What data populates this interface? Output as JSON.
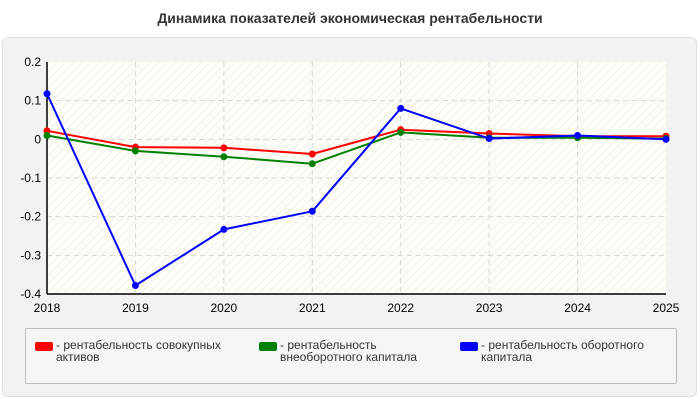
{
  "chart_data": {
    "type": "line",
    "title": "Динамика показателей экономическая рентабельности",
    "xlabel": "",
    "ylabel": "",
    "categories": [
      "2018",
      "2019",
      "2020",
      "2021",
      "2022",
      "2023",
      "2024",
      "2025"
    ],
    "ylim": [
      -0.4,
      0.2
    ],
    "yticks": [
      "0.2",
      "0.1",
      "0",
      "-0.1",
      "-0.2",
      "-0.3",
      "-0.4"
    ],
    "grid": true,
    "legend_position": "bottom",
    "series": [
      {
        "name": "рентабельность совокупных активов",
        "color": "#ff0000",
        "values": [
          0.022,
          -0.02,
          -0.022,
          -0.038,
          0.025,
          0.015,
          0.008,
          0.008
        ]
      },
      {
        "name": "рентабельность внеоборотного капитала",
        "color": "#008000",
        "values": [
          0.01,
          -0.03,
          -0.045,
          -0.063,
          0.018,
          0.004,
          0.004,
          0.002
        ]
      },
      {
        "name": "рентабельность оборотного капитала",
        "color": "#0000ff",
        "values": [
          0.118,
          -0.378,
          -0.233,
          -0.186,
          0.08,
          0.002,
          0.01,
          0.0
        ]
      }
    ]
  }
}
